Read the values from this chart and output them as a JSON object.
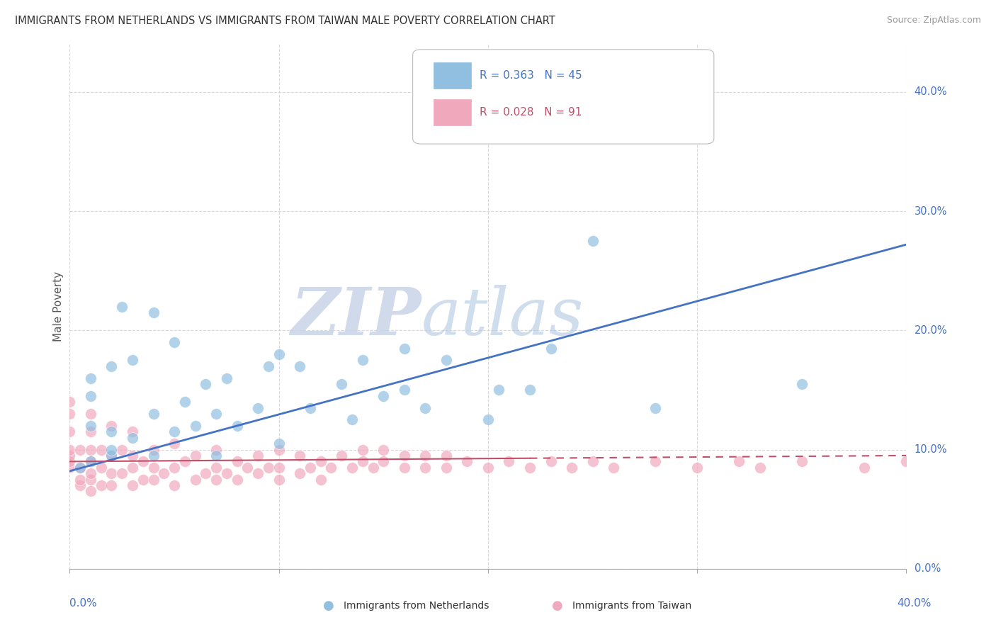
{
  "title": "IMMIGRANTS FROM NETHERLANDS VS IMMIGRANTS FROM TAIWAN MALE POVERTY CORRELATION CHART",
  "source": "Source: ZipAtlas.com",
  "ylabel": "Male Poverty",
  "xlim": [
    0,
    0.4
  ],
  "ylim": [
    0.0,
    0.44
  ],
  "legend_r1": "R = 0.363",
  "legend_n1": "N = 45",
  "legend_r2": "R = 0.028",
  "legend_n2": "N = 91",
  "watermark_zip": "ZIP",
  "watermark_atlas": "atlas",
  "watermark_zip_color": "#c8d4e8",
  "watermark_atlas_color": "#b8cce4",
  "blue_color": "#90bfe0",
  "pink_color": "#f0a8bc",
  "blue_line_color": "#4472c4",
  "pink_line_color": "#c0506a",
  "background_color": "#ffffff",
  "grid_color": "#d8d8d8",
  "nl_line_x0": 0.0,
  "nl_line_y0": 0.082,
  "nl_line_x1": 0.4,
  "nl_line_y1": 0.272,
  "tw_line_x0": 0.0,
  "tw_line_y0": 0.09,
  "tw_line_x1_solid": 0.22,
  "tw_line_x1_dashed": 0.4,
  "tw_line_y1": 0.095,
  "nl_x": [
    0.005,
    0.01,
    0.01,
    0.01,
    0.01,
    0.02,
    0.02,
    0.02,
    0.02,
    0.025,
    0.03,
    0.03,
    0.04,
    0.04,
    0.04,
    0.05,
    0.05,
    0.055,
    0.06,
    0.065,
    0.07,
    0.07,
    0.075,
    0.08,
    0.09,
    0.095,
    0.1,
    0.1,
    0.11,
    0.115,
    0.13,
    0.135,
    0.14,
    0.15,
    0.16,
    0.16,
    0.17,
    0.18,
    0.2,
    0.205,
    0.22,
    0.23,
    0.25,
    0.28,
    0.35
  ],
  "nl_y": [
    0.085,
    0.09,
    0.12,
    0.145,
    0.16,
    0.095,
    0.1,
    0.115,
    0.17,
    0.22,
    0.11,
    0.175,
    0.095,
    0.13,
    0.215,
    0.115,
    0.19,
    0.14,
    0.12,
    0.155,
    0.095,
    0.13,
    0.16,
    0.12,
    0.135,
    0.17,
    0.105,
    0.18,
    0.17,
    0.135,
    0.155,
    0.125,
    0.175,
    0.145,
    0.15,
    0.185,
    0.135,
    0.175,
    0.125,
    0.15,
    0.15,
    0.185,
    0.275,
    0.135,
    0.155
  ],
  "tw_x": [
    0.0,
    0.0,
    0.0,
    0.0,
    0.0,
    0.0,
    0.0,
    0.005,
    0.005,
    0.005,
    0.005,
    0.01,
    0.01,
    0.01,
    0.01,
    0.01,
    0.01,
    0.01,
    0.015,
    0.015,
    0.015,
    0.02,
    0.02,
    0.02,
    0.02,
    0.025,
    0.025,
    0.03,
    0.03,
    0.03,
    0.03,
    0.035,
    0.035,
    0.04,
    0.04,
    0.04,
    0.045,
    0.05,
    0.05,
    0.05,
    0.055,
    0.06,
    0.06,
    0.065,
    0.07,
    0.07,
    0.07,
    0.075,
    0.08,
    0.08,
    0.085,
    0.09,
    0.09,
    0.095,
    0.1,
    0.1,
    0.1,
    0.11,
    0.11,
    0.115,
    0.12,
    0.12,
    0.125,
    0.13,
    0.135,
    0.14,
    0.14,
    0.145,
    0.15,
    0.15,
    0.16,
    0.16,
    0.17,
    0.17,
    0.18,
    0.18,
    0.19,
    0.2,
    0.21,
    0.22,
    0.23,
    0.24,
    0.25,
    0.26,
    0.28,
    0.3,
    0.32,
    0.33,
    0.35,
    0.38,
    0.4
  ],
  "tw_y": [
    0.085,
    0.09,
    0.095,
    0.1,
    0.115,
    0.13,
    0.14,
    0.07,
    0.075,
    0.085,
    0.1,
    0.065,
    0.075,
    0.08,
    0.09,
    0.1,
    0.115,
    0.13,
    0.07,
    0.085,
    0.1,
    0.07,
    0.08,
    0.095,
    0.12,
    0.08,
    0.1,
    0.07,
    0.085,
    0.095,
    0.115,
    0.075,
    0.09,
    0.075,
    0.085,
    0.1,
    0.08,
    0.07,
    0.085,
    0.105,
    0.09,
    0.075,
    0.095,
    0.08,
    0.075,
    0.085,
    0.1,
    0.08,
    0.075,
    0.09,
    0.085,
    0.08,
    0.095,
    0.085,
    0.075,
    0.085,
    0.1,
    0.08,
    0.095,
    0.085,
    0.075,
    0.09,
    0.085,
    0.095,
    0.085,
    0.09,
    0.1,
    0.085,
    0.09,
    0.1,
    0.085,
    0.095,
    0.085,
    0.095,
    0.085,
    0.095,
    0.09,
    0.085,
    0.09,
    0.085,
    0.09,
    0.085,
    0.09,
    0.085,
    0.09,
    0.085,
    0.09,
    0.085,
    0.09,
    0.085,
    0.09
  ]
}
